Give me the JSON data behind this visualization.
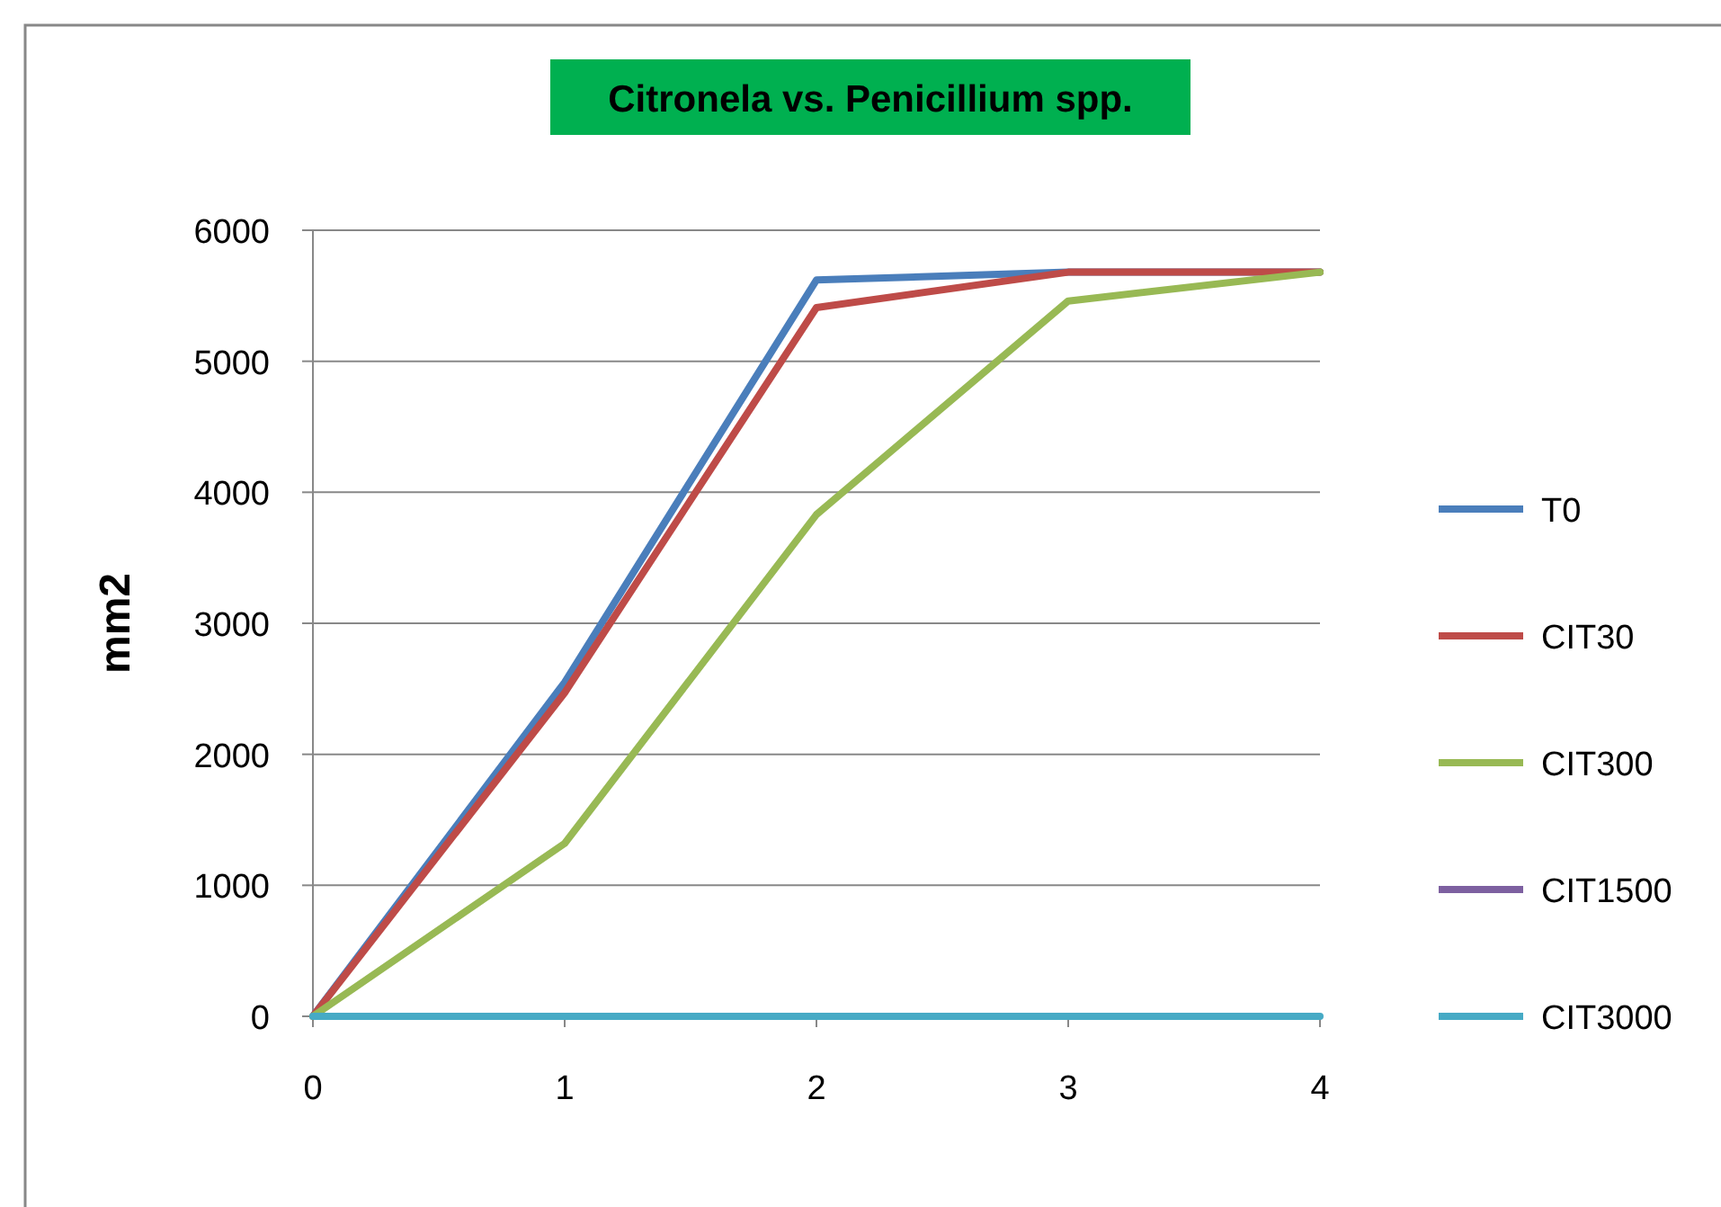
{
  "chart_data": {
    "type": "line",
    "title": "Citronela vs. Penicillium spp.",
    "ylabel": "mm2",
    "x": [
      0,
      1,
      2,
      3,
      4
    ],
    "xlim": [
      0,
      4
    ],
    "xticks": [
      0,
      1,
      2,
      3,
      4
    ],
    "ylim": [
      0,
      6000
    ],
    "yticks": [
      0,
      1000,
      2000,
      3000,
      4000,
      5000,
      6000
    ],
    "grid": "y",
    "legend": "right",
    "marker": "none",
    "series": [
      {
        "name": "T0",
        "color": "#4a7ebb",
        "values": [
          0,
          2550,
          5620,
          5680,
          5680
        ]
      },
      {
        "name": "CIT30",
        "color": "#be4b48",
        "values": [
          0,
          2470,
          5410,
          5680,
          5680
        ]
      },
      {
        "name": "CIT300",
        "color": "#98b954",
        "values": [
          0,
          1320,
          3830,
          5460,
          5680
        ]
      },
      {
        "name": "CIT1500",
        "color": "#7d60a0",
        "values": [
          null,
          null,
          null,
          null,
          null
        ]
      },
      {
        "name": "CIT3000",
        "color": "#46aac5",
        "values": [
          0,
          0,
          0,
          0,
          0
        ]
      }
    ]
  }
}
